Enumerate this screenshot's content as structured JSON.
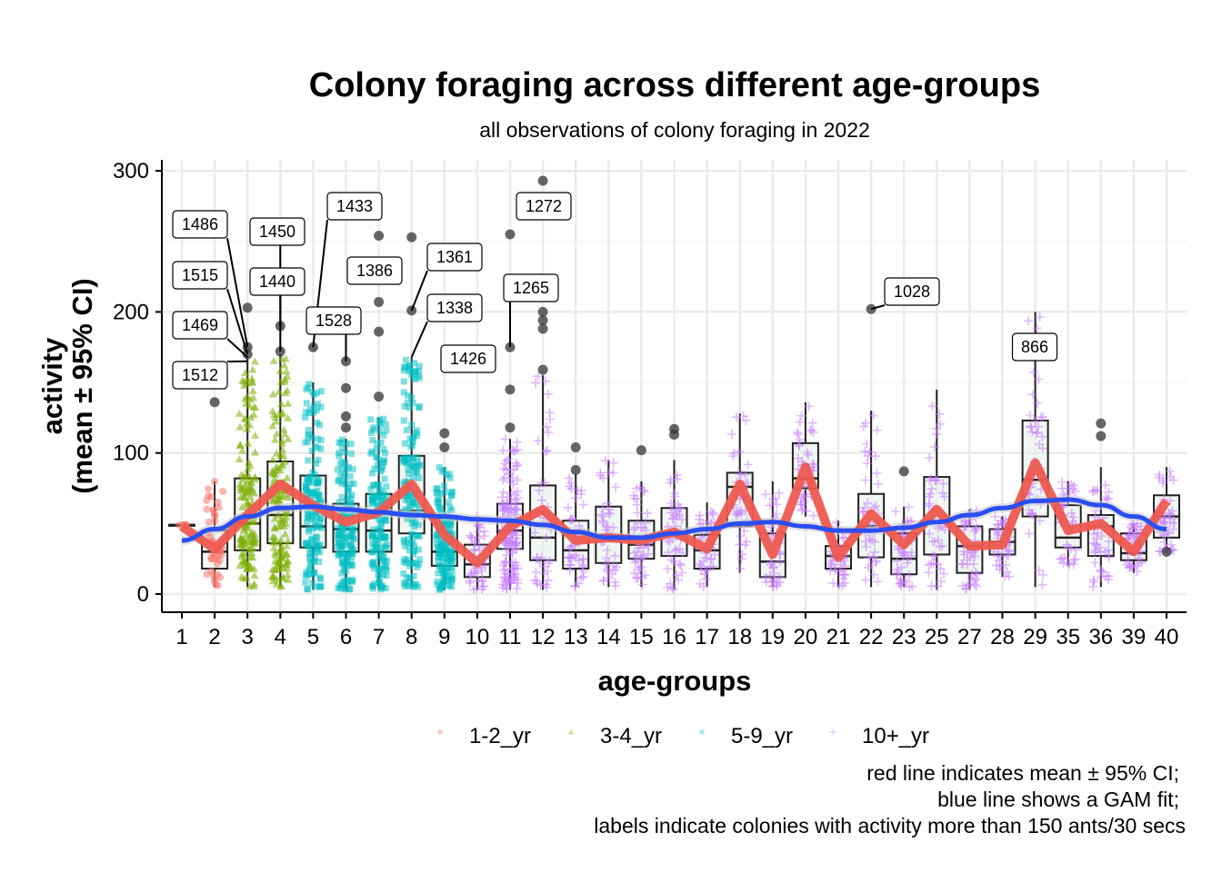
{
  "chart_data": {
    "type": "box",
    "title": "Colony foraging across different age-groups",
    "subtitle": "all observations of colony foraging in 2022",
    "xlabel": "age-groups",
    "ylabel_line1": "activity",
    "ylabel_line2": "(mean ± 95% CI)",
    "ylim": [
      -12,
      305
    ],
    "yticks": [
      0,
      100,
      200,
      300
    ],
    "grid": true,
    "legend_position": "bottom",
    "categories": [
      "1",
      "2",
      "3",
      "4",
      "5",
      "6",
      "7",
      "8",
      "9",
      "10",
      "11",
      "12",
      "13",
      "14",
      "15",
      "16",
      "17",
      "18",
      "19",
      "20",
      "21",
      "22",
      "23",
      "25",
      "27",
      "28",
      "29",
      "35",
      "36",
      "39",
      "40"
    ],
    "groups": [
      "1-2_yr",
      "1-2_yr",
      "3-4_yr",
      "3-4_yr",
      "5-9_yr",
      "5-9_yr",
      "5-9_yr",
      "5-9_yr",
      "5-9_yr",
      "10+_yr",
      "10+_yr",
      "10+_yr",
      "10+_yr",
      "10+_yr",
      "10+_yr",
      "10+_yr",
      "10+_yr",
      "10+_yr",
      "10+_yr",
      "10+_yr",
      "10+_yr",
      "10+_yr",
      "10+_yr",
      "10+_yr",
      "10+_yr",
      "10+_yr",
      "10+_yr",
      "10+_yr",
      "10+_yr",
      "10+_yr",
      "10+_yr"
    ],
    "legend": [
      {
        "name": "1-2_yr",
        "color": "#F8766D",
        "shape": "circle"
      },
      {
        "name": "3-4_yr",
        "color": "#7CAE00",
        "shape": "triangle"
      },
      {
        "name": "5-9_yr",
        "color": "#00BFC4",
        "shape": "square"
      },
      {
        "name": "10+_yr",
        "color": "#C77CFF",
        "shape": "cross"
      }
    ],
    "boxes": [
      {
        "q1": 49,
        "median": 49,
        "q3": 49,
        "lo": 49,
        "hi": 49
      },
      {
        "q1": 18,
        "median": 30,
        "q3": 45,
        "lo": 5,
        "hi": 80
      },
      {
        "q1": 31,
        "median": 50,
        "q3": 82,
        "lo": 5,
        "hi": 168
      },
      {
        "q1": 36,
        "median": 56,
        "q3": 94,
        "lo": 5,
        "hi": 170
      },
      {
        "q1": 33,
        "median": 48,
        "q3": 84,
        "lo": 3,
        "hi": 150
      },
      {
        "q1": 30,
        "median": 46,
        "q3": 64,
        "lo": 3,
        "hi": 110
      },
      {
        "q1": 30,
        "median": 45,
        "q3": 71,
        "lo": 3,
        "hi": 125
      },
      {
        "q1": 43,
        "median": 59,
        "q3": 98,
        "lo": 5,
        "hi": 168
      },
      {
        "q1": 20,
        "median": 30,
        "q3": 53,
        "lo": 3,
        "hi": 90
      },
      {
        "q1": 12,
        "median": 21,
        "q3": 35,
        "lo": 3,
        "hi": 55
      },
      {
        "q1": 32,
        "median": 45,
        "q3": 64,
        "lo": 3,
        "hi": 110
      },
      {
        "q1": 24,
        "median": 40,
        "q3": 77,
        "lo": 3,
        "hi": 155
      },
      {
        "q1": 18,
        "median": 31,
        "q3": 52,
        "lo": 5,
        "hi": 85
      },
      {
        "q1": 22,
        "median": 38,
        "q3": 62,
        "lo": 5,
        "hi": 95
      },
      {
        "q1": 25,
        "median": 35,
        "q3": 52,
        "lo": 5,
        "hi": 80
      },
      {
        "q1": 27,
        "median": 41,
        "q3": 61,
        "lo": 3,
        "hi": 95
      },
      {
        "q1": 18,
        "median": 31,
        "q3": 42,
        "lo": 5,
        "hi": 65
      },
      {
        "q1": 48,
        "median": 76,
        "q3": 86,
        "lo": 15,
        "hi": 128
      },
      {
        "q1": 12,
        "median": 23,
        "q3": 43,
        "lo": 5,
        "hi": 80
      },
      {
        "q1": 75,
        "median": 82,
        "q3": 107,
        "lo": 55,
        "hi": 136
      },
      {
        "q1": 18,
        "median": 27,
        "q3": 34,
        "lo": 5,
        "hi": 52
      },
      {
        "q1": 26,
        "median": 48,
        "q3": 71,
        "lo": 5,
        "hi": 130
      },
      {
        "q1": 14,
        "median": 25,
        "q3": 43,
        "lo": 5,
        "hi": 62
      },
      {
        "q1": 28,
        "median": 51,
        "q3": 83,
        "lo": 3,
        "hi": 145
      },
      {
        "q1": 15,
        "median": 34,
        "q3": 48,
        "lo": 3,
        "hi": 60
      },
      {
        "q1": 28,
        "median": 37,
        "q3": 46,
        "lo": 12,
        "hi": 55
      },
      {
        "q1": 55,
        "median": 81,
        "q3": 123,
        "lo": 5,
        "hi": 200
      },
      {
        "q1": 33,
        "median": 40,
        "q3": 63,
        "lo": 20,
        "hi": 80
      },
      {
        "q1": 27,
        "median": 48,
        "q3": 56,
        "lo": 5,
        "hi": 90
      },
      {
        "q1": 24,
        "median": 29,
        "q3": 43,
        "lo": 15,
        "hi": 50
      },
      {
        "q1": 40,
        "median": 55,
        "q3": 70,
        "lo": 30,
        "hi": 90
      }
    ],
    "outliers": [
      {
        "x": "2",
        "y": 136
      },
      {
        "x": "3",
        "y": 203
      },
      {
        "x": "3",
        "y": 175
      },
      {
        "x": "3",
        "y": 170
      },
      {
        "x": "4",
        "y": 190
      },
      {
        "x": "4",
        "y": 172
      },
      {
        "x": "5",
        "y": 175
      },
      {
        "x": "6",
        "y": 165
      },
      {
        "x": "6",
        "y": 146
      },
      {
        "x": "6",
        "y": 126
      },
      {
        "x": "6",
        "y": 118
      },
      {
        "x": "7",
        "y": 254
      },
      {
        "x": "7",
        "y": 207
      },
      {
        "x": "7",
        "y": 186
      },
      {
        "x": "7",
        "y": 140
      },
      {
        "x": "8",
        "y": 253
      },
      {
        "x": "8",
        "y": 201
      },
      {
        "x": "9",
        "y": 114
      },
      {
        "x": "9",
        "y": 104
      },
      {
        "x": "11",
        "y": 255
      },
      {
        "x": "11",
        "y": 175
      },
      {
        "x": "11",
        "y": 145
      },
      {
        "x": "11",
        "y": 118
      },
      {
        "x": "12",
        "y": 293
      },
      {
        "x": "12",
        "y": 200
      },
      {
        "x": "12",
        "y": 194
      },
      {
        "x": "12",
        "y": 188
      },
      {
        "x": "12",
        "y": 159
      },
      {
        "x": "13",
        "y": 104
      },
      {
        "x": "13",
        "y": 88
      },
      {
        "x": "15",
        "y": 102
      },
      {
        "x": "16",
        "y": 117
      },
      {
        "x": "16",
        "y": 113
      },
      {
        "x": "22",
        "y": 202
      },
      {
        "x": "23",
        "y": 87
      },
      {
        "x": "36",
        "y": 121
      },
      {
        "x": "36",
        "y": 112
      },
      {
        "x": "40",
        "y": 30
      }
    ],
    "mean_line": [
      48,
      32,
      56,
      78,
      63,
      51,
      58,
      78,
      42,
      22,
      48,
      60,
      38,
      40,
      38,
      44,
      32,
      78,
      28,
      90,
      26,
      57,
      35,
      60,
      34,
      35,
      93,
      45,
      50,
      30,
      66
    ],
    "gam_line": [
      38,
      46,
      55,
      61,
      62,
      60,
      58,
      56,
      55,
      53,
      52,
      49,
      44,
      40,
      40,
      43,
      46,
      50,
      51,
      48,
      45,
      45,
      47,
      51,
      56,
      61,
      66,
      67,
      63,
      55,
      46
    ],
    "labels": [
      {
        "text": "1486",
        "x": "3",
        "y": 175
      },
      {
        "text": "1515",
        "x": "3",
        "y": 170
      },
      {
        "text": "1469",
        "x": "3",
        "y": 168
      },
      {
        "text": "1512",
        "x": "3",
        "y": 165
      },
      {
        "text": "1450",
        "x": "4",
        "y": 190
      },
      {
        "text": "1440",
        "x": "4",
        "y": 172
      },
      {
        "text": "1433",
        "x": "5",
        "y": 175
      },
      {
        "text": "1528",
        "x": "6",
        "y": 165
      },
      {
        "text": "1386",
        "x": "7",
        "y": 254
      },
      {
        "text": "1361",
        "x": "8",
        "y": 201
      },
      {
        "text": "1338",
        "x": "8",
        "y": 168
      },
      {
        "text": "1426",
        "x": "9",
        "y": 160
      },
      {
        "text": "1272",
        "x": "12",
        "y": 293
      },
      {
        "text": "1265",
        "x": "11",
        "y": 175
      },
      {
        "text": "1028",
        "x": "22",
        "y": 202
      },
      {
        "text": "866",
        "x": "29",
        "y": 200
      }
    ],
    "caption": [
      "red line indicates mean ± 95% CI;",
      "blue line shows a GAM fit;",
      "labels indicate colonies with activity more than 150 ants/30 secs"
    ]
  }
}
